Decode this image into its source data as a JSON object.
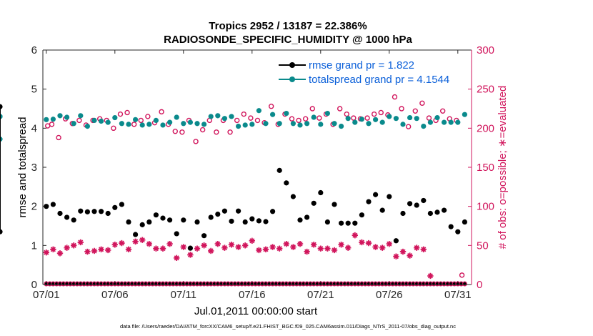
{
  "chart_data": {
    "type": "scatter",
    "title_line1": "Tropics 2952 / 13187 = 22.386%",
    "title_line2": "RADIOSONDE_SPECIFIC_HUMIDITY @ 1000 hPa",
    "xlabel": "Jul.01,2011 00:00:00 start",
    "ylabel_left": "rmse and totalspread",
    "ylabel_right": "# of obs: o=possible; ∗=evaluated",
    "footer": "data file: /Users/raeder/DAI/ATM_forcXX/CAM6_setup/f.e21.FHIST_BGC.f09_025.CAM6assim.011/Diags_NTrS_2011-07/obs_diag_output.nc",
    "xlim": [
      0.75,
      32.0
    ],
    "ylim_left": [
      0,
      6
    ],
    "ylim_right": [
      0,
      300
    ],
    "x_ticks": [
      1,
      6,
      11,
      16,
      21,
      26,
      31
    ],
    "x_tick_labels": [
      "07/01",
      "07/06",
      "07/11",
      "07/16",
      "07/21",
      "07/26",
      "07/31"
    ],
    "y_ticks_left": [
      0,
      1,
      2,
      3,
      4,
      5,
      6
    ],
    "y_ticks_right": [
      0,
      50,
      100,
      150,
      200,
      250,
      300
    ],
    "legend": {
      "rmse": "rmse grand pr = 1.822",
      "spread": "totalspread grand pr = 4.1544"
    },
    "colors": {
      "rmse": "#000000",
      "spread": "#0a8a8c",
      "obs": "#d1155c",
      "legend_text": "#0a5fd9",
      "right_axis": "#d1155c"
    },
    "rmse_x": [
      1.0,
      1.25,
      1.5,
      1.75,
      2.0,
      2.25,
      2.5,
      2.75,
      3.0,
      3.25,
      3.5,
      3.75,
      4.0,
      4.25,
      4.5,
      4.75,
      5.0,
      5.25,
      5.5,
      5.75,
      6.0,
      6.25,
      6.5,
      6.75,
      7.0,
      7.25,
      7.5,
      7.75,
      8.0,
      8.25,
      8.5,
      8.75,
      9.0,
      9.25,
      9.5,
      9.75,
      10.0,
      10.25,
      10.5,
      10.75,
      11.0,
      11.25,
      11.5,
      11.75,
      12.0,
      12.25,
      12.5,
      12.75,
      13.0,
      13.25,
      13.5,
      13.75,
      14.0,
      14.25,
      14.5,
      14.75,
      15.0,
      15.25,
      15.5,
      15.75,
      16.0,
      16.25,
      16.5,
      16.75,
      17.0,
      17.25,
      17.5,
      17.75,
      18.0,
      18.25,
      18.5,
      18.75,
      19.0,
      19.25,
      19.5,
      19.75,
      20.0,
      20.25,
      20.5,
      20.75,
      21.0,
      21.25,
      21.5,
      21.75,
      22.0,
      22.25,
      22.5,
      22.75,
      23.0,
      23.25,
      23.5,
      23.75,
      24.0,
      24.25,
      24.5,
      24.75,
      25.0,
      25.25,
      25.5,
      25.75,
      26.0,
      26.25,
      26.5,
      26.75,
      27.0,
      27.25,
      27.5,
      27.75,
      28.0,
      28.25,
      28.5,
      28.75,
      29.0,
      29.25,
      29.5,
      29.75,
      30.0,
      30.25,
      30.5,
      30.75,
      31.0,
      31.25,
      31.5
    ],
    "rmse": [
      2.0,
      null,
      2.05,
      null,
      1.82,
      null,
      1.72,
      null,
      1.65,
      null,
      1.88,
      null,
      1.86,
      null,
      1.87,
      null,
      1.87,
      null,
      1.82,
      null,
      1.97,
      null,
      2.05,
      null,
      1.6,
      null,
      1.28,
      null,
      1.53,
      null,
      1.6,
      null,
      1.78,
      null,
      1.7,
      null,
      1.65,
      null,
      1.3,
      null,
      1.65,
      null,
      0.93,
      null,
      1.6,
      null,
      1.25,
      null,
      1.72,
      null,
      1.8,
      null,
      1.88,
      null,
      1.62,
      null,
      1.88,
      null,
      1.6,
      null,
      1.68,
      null,
      1.63,
      null,
      1.61,
      null,
      1.87,
      null,
      2.92,
      null,
      2.6,
      null,
      2.25,
      null,
      1.65,
      null,
      1.72,
      null,
      2.08,
      null,
      2.35,
      null,
      1.6,
      null,
      2.05,
      null,
      1.57,
      null,
      1.57,
      null,
      1.57,
      null,
      1.78,
      null,
      2.12,
      null,
      2.3,
      null,
      1.9,
      null,
      2.25,
      null,
      1.12,
      null,
      1.82,
      null,
      2.07,
      null,
      2.03,
      null,
      2.15,
      null,
      1.82,
      null,
      1.85,
      null,
      1.9,
      null,
      1.48,
      null,
      1.35,
      null,
      1.6,
      null,
      1.35,
      null,
      4.55
    ],
    "spread": [
      4.22,
      null,
      4.23,
      null,
      4.32,
      null,
      4.28,
      null,
      4.12,
      null,
      4.32,
      null,
      4.05,
      null,
      4.2,
      null,
      4.18,
      null,
      4.15,
      null,
      4.27,
      null,
      4.12,
      null,
      4.1,
      null,
      4.22,
      null,
      4.08,
      null,
      4.1,
      null,
      4.2,
      null,
      4.08,
      null,
      4.15,
      null,
      4.28,
      null,
      4.12,
      null,
      4.15,
      null,
      4.12,
      null,
      4.1,
      null,
      4.3,
      null,
      4.32,
      null,
      4.25,
      null,
      4.3,
      null,
      4.05,
      null,
      4.08,
      null,
      4.1,
      null,
      4.45,
      null,
      4.12,
      null,
      4.35,
      null,
      4.12,
      null,
      4.38,
      null,
      4.12,
      null,
      4.08,
      null,
      4.12,
      null,
      4.28,
      null,
      4.1,
      null,
      4.38,
      null,
      4.12,
      null,
      4.05,
      null,
      4.25,
      null,
      4.15,
      null,
      4.23,
      null,
      4.12,
      null,
      4.22,
      null,
      4.15,
      null,
      4.3,
      null,
      4.25,
      null,
      4.1,
      null,
      4.27,
      null,
      4.25,
      null,
      4.05,
      null,
      4.15,
      null,
      4.27,
      null,
      4.15,
      null,
      4.15,
      null,
      4.15,
      null,
      4.35,
      null,
      4.3,
      null,
      4.3,
      null,
      3.72
    ],
    "obs_possible_x": [
      1.1,
      1.4,
      1.9,
      2.4,
      2.9,
      3.4,
      3.9,
      4.4,
      4.9,
      5.4,
      5.9,
      6.4,
      6.9,
      7.4,
      7.9,
      8.4,
      8.9,
      9.4,
      9.9,
      10.4,
      10.9,
      11.4,
      11.9,
      12.4,
      12.9,
      13.4,
      13.9,
      14.4,
      14.9,
      15.4,
      15.9,
      16.4,
      16.9,
      17.4,
      17.9,
      18.4,
      18.9,
      19.4,
      19.9,
      20.4,
      20.9,
      21.4,
      21.9,
      22.4,
      22.9,
      23.4,
      23.9,
      24.4,
      24.9,
      25.4,
      25.9,
      26.4,
      26.9,
      27.4,
      27.9,
      28.4,
      28.9,
      29.4,
      29.9,
      30.4,
      30.9,
      31.3
    ],
    "obs_possible": [
      203,
      205,
      188,
      212,
      206,
      210,
      204,
      210,
      212,
      210,
      200,
      218,
      220,
      205,
      210,
      215,
      207,
      221,
      205,
      196,
      195,
      210,
      183,
      198,
      210,
      195,
      210,
      195,
      210,
      218,
      213,
      210,
      207,
      228,
      205,
      218,
      212,
      210,
      212,
      225,
      213,
      218,
      205,
      225,
      218,
      213,
      212,
      213,
      218,
      220,
      217,
      240,
      225,
      202,
      222,
      232,
      213,
      210,
      222,
      212,
      210,
      12
    ],
    "obs_evaluated_x": [
      1.0,
      1.25,
      1.5,
      1.75,
      2.0,
      2.25,
      2.5,
      2.75,
      3.0,
      3.25,
      3.5,
      3.75,
      4.0,
      4.25,
      4.5,
      4.75,
      5.0,
      5.25,
      5.5,
      5.75,
      6.0,
      6.25,
      6.5,
      6.75,
      7.0,
      7.25,
      7.5,
      7.75,
      8.0,
      8.25,
      8.5,
      8.75,
      9.0,
      9.25,
      9.5,
      9.75,
      10.0,
      10.25,
      10.5,
      10.75,
      11.0,
      11.25,
      11.5,
      11.75,
      12.0,
      12.25,
      12.5,
      12.75,
      13.0,
      13.25,
      13.5,
      13.75,
      14.0,
      14.25,
      14.5,
      14.75,
      15.0,
      15.25,
      15.5,
      15.75,
      16.0,
      16.25,
      16.5,
      16.75,
      17.0,
      17.25,
      17.5,
      17.75,
      18.0,
      18.25,
      18.5,
      18.75,
      19.0,
      19.25,
      19.5,
      19.75,
      20.0,
      20.25,
      20.5,
      20.75,
      21.0,
      21.25,
      21.5,
      21.75,
      22.0,
      22.25,
      22.5,
      22.75,
      23.0,
      23.25,
      23.5,
      23.75,
      24.0,
      24.25,
      24.5,
      24.75,
      25.0,
      25.25,
      25.5,
      25.75,
      26.0,
      26.25,
      26.5,
      26.75,
      27.0,
      27.25,
      27.5,
      27.75,
      28.0,
      28.25,
      28.5,
      28.75,
      29.0,
      29.25,
      29.5,
      29.75,
      30.0,
      30.25,
      30.5,
      30.75,
      31.0,
      31.25,
      31.5
    ],
    "obs_evaluated": [
      41,
      null,
      45,
      null,
      40,
      null,
      47,
      null,
      50,
      null,
      54,
      null,
      42,
      null,
      43,
      null,
      45,
      null,
      44,
      null,
      51,
      null,
      53,
      null,
      45,
      null,
      55,
      null,
      57,
      null,
      52,
      null,
      46,
      null,
      46,
      null,
      52,
      null,
      34,
      null,
      48,
      null,
      38,
      null,
      46,
      null,
      50,
      null,
      43,
      null,
      52,
      null,
      47,
      null,
      51,
      null,
      48,
      null,
      50,
      null,
      56,
      null,
      44,
      null,
      45,
      null,
      48,
      null,
      46,
      null,
      52,
      null,
      48,
      null,
      52,
      null,
      42,
      null,
      51,
      null,
      46,
      null,
      46,
      null,
      44,
      null,
      51,
      null,
      47,
      null,
      63,
      null,
      54,
      null,
      53,
      null,
      48,
      null,
      47,
      null,
      52,
      null,
      36,
      null,
      42,
      null,
      37,
      null,
      47,
      null,
      45,
      null,
      11
    ]
  }
}
